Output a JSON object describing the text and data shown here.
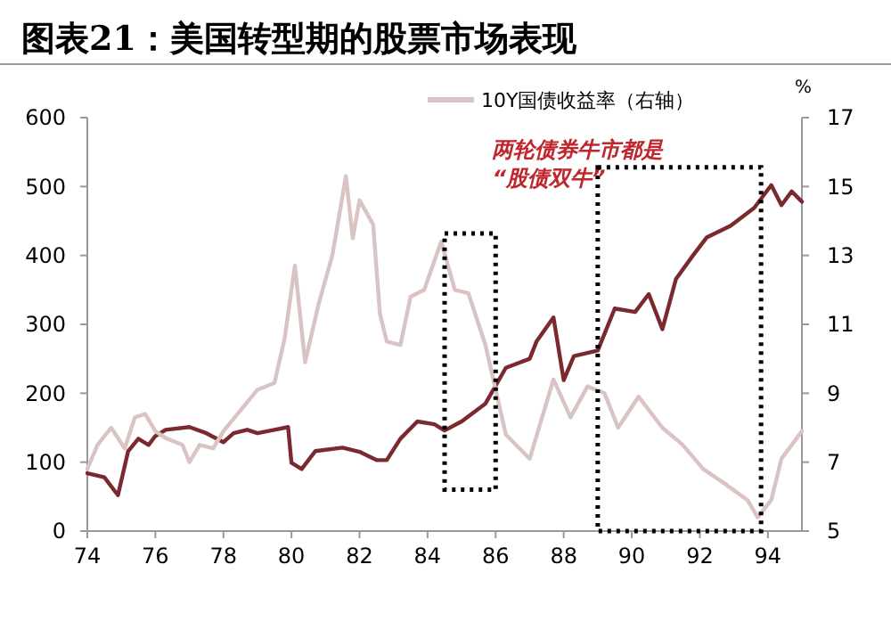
{
  "chart_data": {
    "type": "line",
    "title": "图表21：美国转型期的股票市场表现",
    "y2label": "%",
    "xlim": [
      74,
      95
    ],
    "xticks": [
      74,
      76,
      78,
      80,
      82,
      84,
      86,
      88,
      90,
      92,
      94
    ],
    "ylim": [
      0,
      600
    ],
    "yticks": [
      0,
      100,
      200,
      300,
      400,
      500,
      600
    ],
    "y2lim": [
      5,
      17
    ],
    "y2ticks": [
      5,
      7,
      9,
      11,
      13,
      15,
      17
    ],
    "legend": "top",
    "grid": false,
    "line_style": "solid",
    "annotations": [
      "两轮债券牛市都是“股债双牛”"
    ],
    "series": [
      {
        "color": "#7a2a2e",
        "x": [
          74,
          74.5,
          74.9,
          75.2,
          75.5,
          75.8,
          76,
          76.3,
          77,
          77.5,
          78,
          78.3,
          78.7,
          79,
          79.5,
          79.9,
          80,
          80.3,
          80.7,
          81.5,
          82,
          82.5,
          82.8,
          83.2,
          83.7,
          84.2,
          84.5,
          85,
          85.7,
          86.3,
          87,
          87.2,
          87.7,
          88,
          88.3,
          89,
          89.5,
          90.1,
          90.5,
          90.9,
          91.3,
          91.8,
          92.2,
          92.9,
          93.6,
          94.1,
          94.4,
          94.7,
          95
        ],
        "values": [
          84,
          78,
          52,
          116,
          134,
          125,
          138,
          147,
          151,
          142,
          129,
          142,
          147,
          142,
          147,
          151,
          99,
          90,
          116,
          121,
          115,
          103,
          103,
          134,
          159,
          155,
          146,
          159,
          185,
          237,
          250,
          275,
          310,
          219,
          254,
          262,
          323,
          318,
          344,
          293,
          366,
          400,
          426,
          443,
          469,
          502,
          473,
          493,
          478
        ]
      },
      {
        "name": "10Y国债收益率（右轴）",
        "axis": "y2",
        "color": "#d9c3c3",
        "x": [
          74,
          74.3,
          74.7,
          75.1,
          75.4,
          75.7,
          76,
          76.3,
          76.8,
          77,
          77.3,
          77.7,
          78,
          78.5,
          79,
          79.5,
          79.8,
          80.1,
          80.4,
          80.8,
          81.2,
          81.6,
          81.8,
          82,
          82.4,
          82.6,
          82.8,
          83.2,
          83.5,
          83.9,
          84.4,
          84.8,
          85.2,
          85.7,
          86.3,
          87,
          87.7,
          88.2,
          88.7,
          89.2,
          89.6,
          90.2,
          90.9,
          91.5,
          92.1,
          92.7,
          93.4,
          93.7,
          94.1,
          94.4,
          95
        ],
        "values": [
          6.8,
          7.5,
          8,
          7.4,
          8.3,
          8.4,
          7.9,
          7.7,
          7.5,
          7,
          7.5,
          7.4,
          7.9,
          8.5,
          9.1,
          9.3,
          10.6,
          12.7,
          9.9,
          11.6,
          13,
          15.3,
          13.5,
          14.6,
          13.9,
          11.3,
          10.5,
          10.4,
          11.8,
          12,
          13.4,
          12,
          11.9,
          10.4,
          7.8,
          7.1,
          9.4,
          8.3,
          9.2,
          9,
          8,
          8.9,
          8,
          7.5,
          6.8,
          6.4,
          5.9,
          5.4,
          5.9,
          7.1,
          7.9
        ]
      }
    ]
  }
}
